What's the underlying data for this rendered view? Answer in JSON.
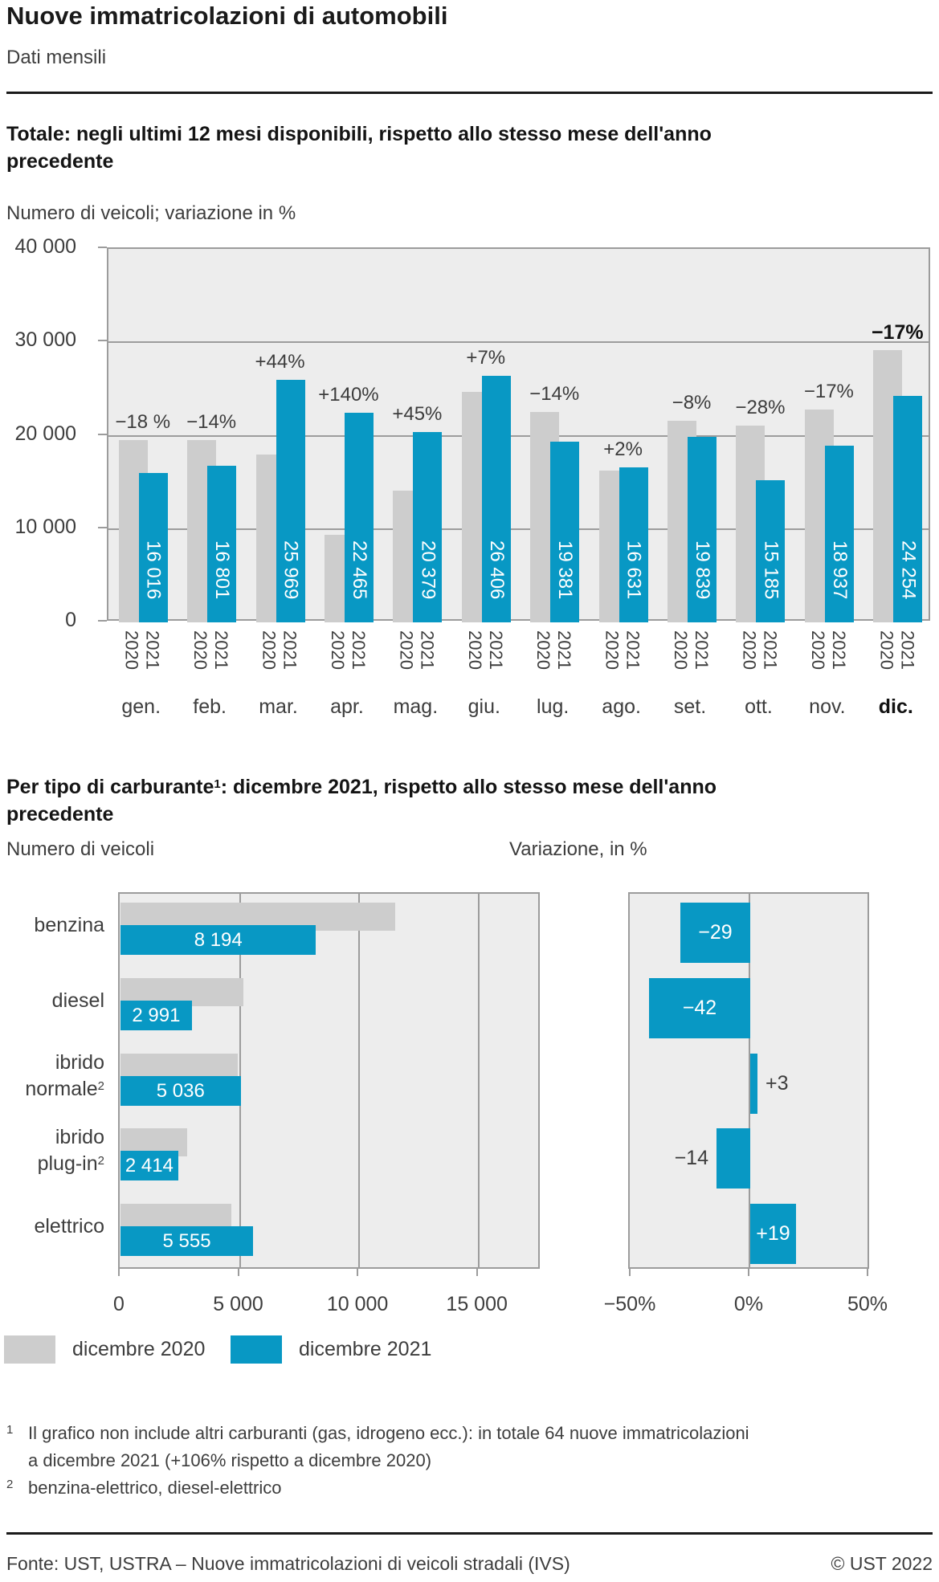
{
  "page": {
    "title": "Nuove immatricolazioni di automobili",
    "subtitle": "Dati mensili",
    "section1": {
      "heading_lines": [
        "Totale: negli ultimi 12 mesi disponibili, rispetto allo stesso mese dell'anno",
        "precedente"
      ],
      "subheading": "Numero di veicoli; variazione in %"
    },
    "section2": {
      "heading_pre": "Per tipo di carburante",
      "heading_sup": "1",
      "heading_rest": ": dicembre 2021, rispetto allo stesso mese dell'anno",
      "heading_line2": "precedente",
      "left_title": "Numero di veicoli",
      "right_title": "Variazione, in %"
    },
    "legend": [
      {
        "label": "dicembre 2020",
        "color": "#cdcdcd"
      },
      {
        "label": "dicembre 2021",
        "color": "#0898c4"
      }
    ],
    "footnotes": [
      {
        "marker": "1",
        "lines": [
          "Il grafico non include altri carburanti (gas, idrogeno ecc.): in totale 64 nuove immatricolazioni",
          "a dicembre 2021 (+106% rispetto a dicembre 2020)"
        ]
      },
      {
        "marker": "2",
        "lines": [
          "benzina-elettrico, diesel-elettrico"
        ]
      }
    ],
    "source": "Fonte: UST, USTRA – Nuove immatricolazioni di veicoli stradali (IVS)",
    "copyright": "© UST 2022",
    "colors": {
      "accent": "#0898c4",
      "neutral": "#cdcdcd",
      "plot_bg": "#ededed",
      "grid": "#9c9c9c",
      "text_dark": "#1a1a1a",
      "text_medium": "#3d3d3d"
    }
  },
  "chart_data": [
    {
      "id": "monthly_total",
      "type": "bar",
      "title": "Totale: negli ultimi 12 mesi disponibili, rispetto allo stesso mese dell'anno precedente",
      "subtitle": "Numero di veicoli; variazione in %",
      "categories": [
        "gen.",
        "feb.",
        "mar.",
        "apr.",
        "mag.",
        "giu.",
        "lug.",
        "ago.",
        "set.",
        "ott.",
        "nov.",
        "dic."
      ],
      "emphasized_category": "dic.",
      "series": [
        {
          "name": "2020",
          "color": "#cdcdcd",
          "values": [
            19500,
            19500,
            18000,
            9400,
            14100,
            24700,
            22500,
            16300,
            21600,
            21100,
            22800,
            29200
          ]
        },
        {
          "name": "2021",
          "color": "#0898c4",
          "values": [
            16016,
            16801,
            25969,
            22465,
            20379,
            26406,
            19381,
            16631,
            19839,
            15185,
            18937,
            24254
          ],
          "value_labels": [
            "16 016",
            "16 801",
            "25 969",
            "22 465",
            "20 379",
            "26 406",
            "19 381",
            "16 631",
            "19 839",
            "15 185",
            "18 937",
            "24 254"
          ]
        }
      ],
      "change_labels": [
        "−18 %",
        "−14%",
        "+44%",
        "+140%",
        "+45%",
        "+7%",
        "−14%",
        "+2%",
        "−8%",
        "−28%",
        "−17%",
        "−17%"
      ],
      "ylim": [
        0,
        40000
      ],
      "ytick_labels": [
        "40 000",
        "30 000",
        "20 000",
        "10 000",
        "0"
      ],
      "grid": "horizontal"
    },
    {
      "id": "by_fuel_count",
      "type": "bar",
      "orientation": "horizontal",
      "title": "Numero di veicoli",
      "categories": [
        {
          "lines": [
            "benzina"
          ]
        },
        {
          "lines": [
            "diesel"
          ]
        },
        {
          "lines": [
            "ibrido",
            "normale"
          ],
          "sup": "2"
        },
        {
          "lines": [
            "ibrido",
            "plug-in"
          ],
          "sup": "2"
        },
        {
          "lines": [
            "elettrico"
          ]
        }
      ],
      "series": [
        {
          "name": "dicembre 2020",
          "color": "#cdcdcd",
          "values": [
            11500,
            5150,
            4900,
            2800,
            4650
          ]
        },
        {
          "name": "dicembre 2021",
          "color": "#0898c4",
          "values": [
            8194,
            2991,
            5036,
            2414,
            5555
          ],
          "value_labels": [
            "8 194",
            "2 991",
            "5 036",
            "2 414",
            "5 555"
          ]
        }
      ],
      "xlim": [
        0,
        17670
      ],
      "xticks": [
        0,
        5000,
        10000,
        15000
      ],
      "xtick_labels": [
        "0",
        "5 000",
        "10 000",
        "15 000"
      ],
      "grid": "vertical"
    },
    {
      "id": "by_fuel_change",
      "type": "bar",
      "orientation": "horizontal",
      "title": "Variazione, in %",
      "categories": [
        {
          "lines": [
            "benzina"
          ]
        },
        {
          "lines": [
            "diesel"
          ]
        },
        {
          "lines": [
            "ibrido",
            "normale"
          ],
          "sup": "2"
        },
        {
          "lines": [
            "ibrido",
            "plug-in"
          ],
          "sup": "2"
        },
        {
          "lines": [
            "elettrico"
          ]
        }
      ],
      "series": [
        {
          "name": "dicembre 2021",
          "color": "#0898c4",
          "values": [
            -29,
            -42,
            3,
            -14,
            19
          ],
          "value_labels": [
            "−29",
            "−42",
            "+3",
            "−14",
            "+19"
          ]
        }
      ],
      "xlim": [
        -50,
        50
      ],
      "xticks": [
        -50,
        0,
        50
      ],
      "xtick_labels": [
        "−50%",
        "0%",
        "50%"
      ],
      "grid": "vertical"
    }
  ]
}
